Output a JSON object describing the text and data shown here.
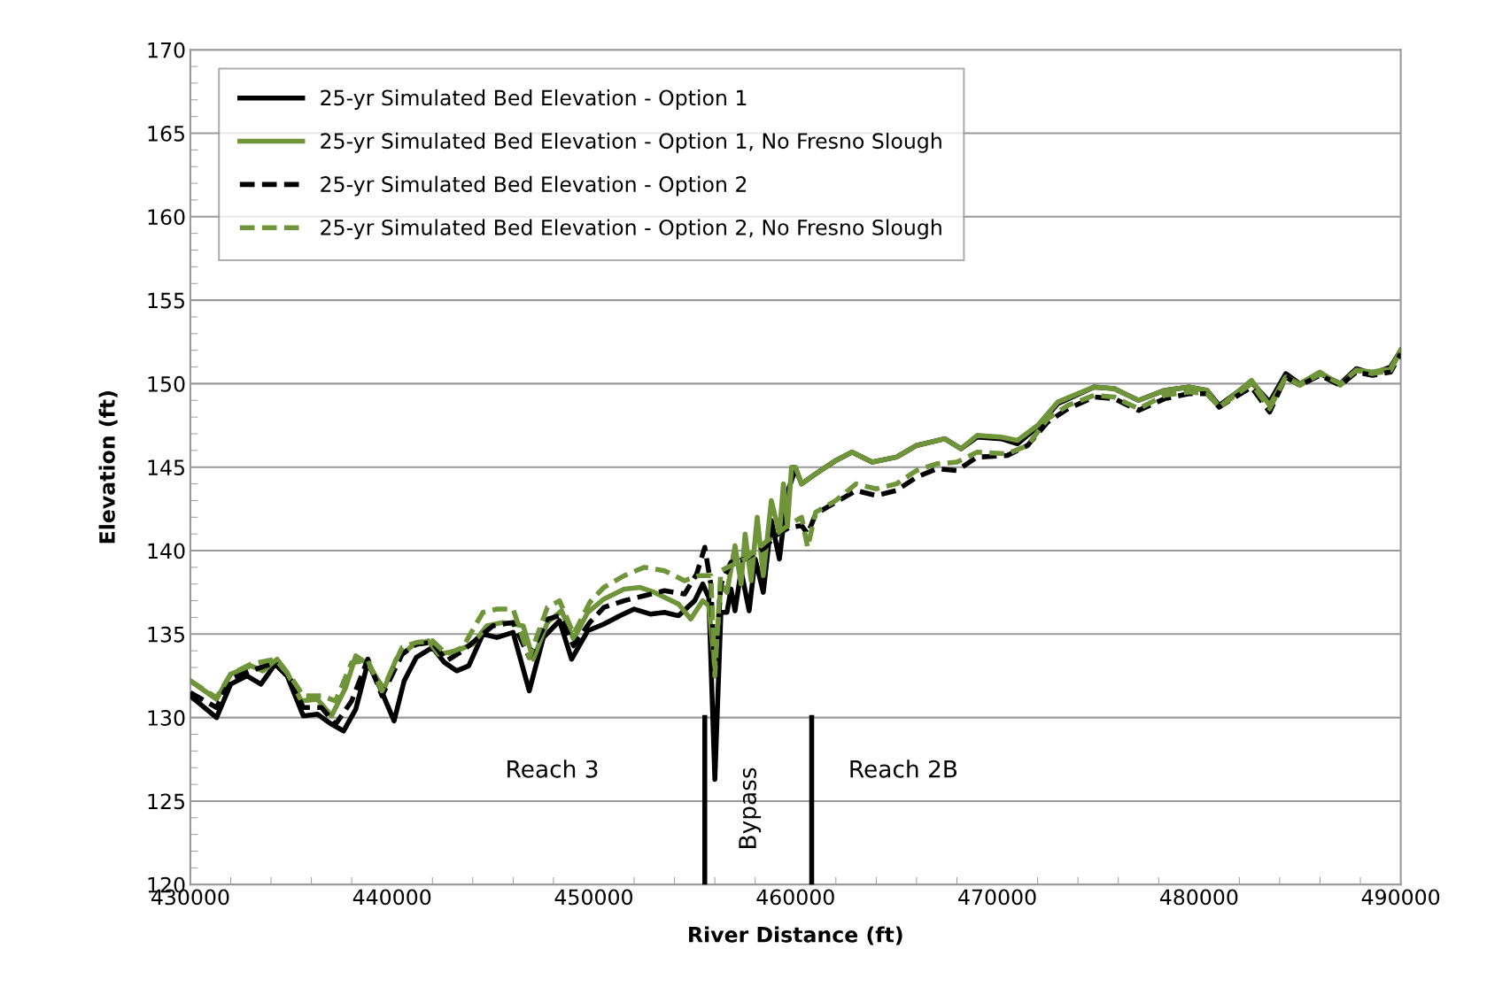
{
  "chart_data": {
    "type": "line",
    "xlabel": "River Distance (ft)",
    "ylabel": "Elevation (ft)",
    "xlim": [
      430000,
      490000
    ],
    "xticks": [
      430000,
      440000,
      450000,
      460000,
      470000,
      480000,
      490000
    ],
    "ylim": [
      120,
      170
    ],
    "yticks": [
      120,
      125,
      130,
      135,
      140,
      145,
      150,
      155,
      160,
      165,
      170
    ],
    "grid": "y",
    "legend": "top left",
    "series": [
      {
        "name": "25-yr Simulated Bed Elevation - Option 1",
        "color": "#000000",
        "line_style": "solid",
        "x": [
          430000,
          431300,
          432000,
          432800,
          433500,
          434200,
          434800,
          435600,
          436300,
          437000,
          437600,
          438200,
          438800,
          439400,
          440100,
          440600,
          441200,
          442000,
          442600,
          443200,
          443800,
          444500,
          445200,
          446000,
          446800,
          447500,
          448300,
          448900,
          449700,
          450500,
          451300,
          452000,
          452800,
          453500,
          454200,
          455000,
          455400,
          455700,
          456000,
          456300,
          456600,
          456800,
          457000,
          457300,
          457700,
          458000,
          458400,
          458800,
          459200,
          459600,
          460000,
          460300,
          461000,
          462000,
          462800,
          463800,
          465000,
          466000,
          467400,
          468200,
          469000,
          470200,
          471000,
          472000,
          473000,
          474800,
          475800,
          477000,
          478300,
          479500,
          480400,
          481000,
          482600,
          483500,
          484300,
          485000,
          486000,
          487000,
          487800,
          488600,
          489500,
          490000
        ],
        "values": [
          131.3,
          130.0,
          132.0,
          132.5,
          132.0,
          133.2,
          132.5,
          130.1,
          130.2,
          129.6,
          129.2,
          130.5,
          133.3,
          131.8,
          129.8,
          132.2,
          133.6,
          134.2,
          133.3,
          132.8,
          133.1,
          135.0,
          134.8,
          135.1,
          131.6,
          134.8,
          135.8,
          133.5,
          135.2,
          135.6,
          136.1,
          136.5,
          136.2,
          136.3,
          136.1,
          137.0,
          138.0,
          137.2,
          126.3,
          136.3,
          136.3,
          137.7,
          136.4,
          138.8,
          136.4,
          139.5,
          137.5,
          141.8,
          139.5,
          143.5,
          144.9,
          144.0,
          144.6,
          145.4,
          145.9,
          145.3,
          145.6,
          146.3,
          146.7,
          146.1,
          146.8,
          146.7,
          146.4,
          147.4,
          148.8,
          149.8,
          149.7,
          149.0,
          149.6,
          149.8,
          149.6,
          148.7,
          150.1,
          148.9,
          150.6,
          150.0,
          150.6,
          150.0,
          150.9,
          150.6,
          151.0,
          152.0
        ]
      },
      {
        "name": "25-yr Simulated Bed Elevation - Option 1, No Fresno Slough",
        "color": "#6f9439",
        "line_style": "solid",
        "x": [
          430000,
          431300,
          432000,
          433000,
          433600,
          434300,
          434800,
          435500,
          436300,
          437000,
          437700,
          438200,
          438800,
          439600,
          440200,
          441000,
          441800,
          442300,
          443200,
          444000,
          444700,
          445500,
          446500,
          447000,
          447700,
          448400,
          449000,
          449700,
          450500,
          451500,
          452300,
          453000,
          454200,
          454800,
          455400,
          455700,
          456000,
          456300,
          456600,
          457000,
          457300,
          457500,
          457800,
          458100,
          458400,
          458800,
          459200,
          459400,
          459600,
          459800,
          460000,
          460300,
          461000,
          462000,
          462800,
          463800,
          465000,
          466000,
          467400,
          468200,
          469000,
          470200,
          471000,
          472000,
          473000,
          474800,
          475800,
          477000,
          478300,
          479500,
          480400,
          481000,
          482600,
          483500,
          484300,
          485000,
          486000,
          487000,
          487800,
          488600,
          489500,
          490000
        ],
        "values": [
          132.2,
          131.1,
          132.6,
          133.1,
          132.8,
          133.5,
          132.7,
          131.0,
          131.1,
          130.1,
          131.8,
          133.7,
          133.2,
          131.7,
          133.5,
          134.3,
          134.6,
          133.8,
          134.0,
          134.4,
          135.5,
          135.7,
          135.5,
          133.5,
          135.7,
          136.4,
          134.7,
          136.3,
          137.1,
          137.7,
          137.8,
          137.5,
          136.8,
          135.9,
          137.0,
          136.7,
          133.0,
          138.0,
          137.5,
          140.3,
          138.0,
          141.0,
          138.2,
          142.0,
          138.5,
          143.0,
          141.0,
          144.0,
          141.5,
          145.0,
          145.0,
          144.0,
          144.6,
          145.4,
          145.9,
          145.3,
          145.6,
          146.3,
          146.7,
          146.1,
          146.9,
          146.8,
          146.6,
          147.5,
          148.9,
          149.8,
          149.7,
          149.0,
          149.6,
          149.8,
          149.6,
          148.6,
          150.2,
          148.7,
          150.4,
          150.0,
          150.7,
          149.9,
          150.8,
          150.7,
          150.9,
          152.0
        ]
      },
      {
        "name": "25-yr Simulated Bed Elevation - Option 2",
        "color": "#000000",
        "line_style": "dashed",
        "x": [
          430000,
          431300,
          432000,
          433000,
          434200,
          435000,
          435600,
          436500,
          437200,
          438000,
          438800,
          439500,
          440500,
          441200,
          442000,
          442700,
          443500,
          444200,
          445000,
          446000,
          446800,
          447700,
          448300,
          449000,
          449800,
          450500,
          451500,
          452500,
          453500,
          454500,
          455100,
          455500,
          455800,
          456000,
          456300,
          456800,
          457500,
          458500,
          459000,
          459700,
          460300,
          460600,
          461000,
          462000,
          463000,
          464000,
          465000,
          466000,
          467000,
          468000,
          469000,
          470500,
          471500,
          472500,
          473500,
          474800,
          475800,
          477000,
          478300,
          479500,
          480400,
          481000,
          482600,
          483500,
          484300,
          485000,
          486000,
          487000,
          487800,
          488600,
          489500,
          490000
        ],
        "values": [
          131.5,
          130.6,
          132.3,
          132.8,
          133.3,
          132.2,
          130.6,
          130.6,
          129.6,
          131.0,
          133.5,
          131.3,
          133.8,
          134.4,
          134.5,
          133.4,
          134.0,
          134.7,
          135.5,
          135.7,
          133.6,
          135.9,
          136.1,
          134.3,
          135.7,
          136.6,
          137.0,
          137.3,
          137.6,
          137.4,
          138.6,
          140.2,
          138.0,
          132.5,
          138.0,
          139.3,
          139.5,
          140.2,
          140.9,
          141.4,
          141.5,
          141.0,
          142.2,
          142.9,
          143.6,
          143.3,
          143.6,
          144.4,
          144.9,
          144.8,
          145.6,
          145.7,
          146.3,
          147.7,
          148.5,
          149.2,
          149.1,
          148.4,
          149.1,
          149.4,
          149.4,
          148.6,
          149.8,
          148.3,
          150.4,
          149.9,
          150.5,
          149.9,
          150.7,
          150.5,
          150.7,
          151.8
        ]
      },
      {
        "name": "25-yr Simulated Bed Elevation - Option 2, No Fresno Slough",
        "color": "#6f9439",
        "line_style": "dashed",
        "x": [
          430000,
          431300,
          432000,
          433000,
          434200,
          435000,
          435600,
          436500,
          437200,
          438000,
          438800,
          439500,
          440500,
          441200,
          442000,
          442700,
          443500,
          444500,
          445200,
          446000,
          446800,
          447700,
          448300,
          449000,
          449800,
          450500,
          451500,
          452500,
          453500,
          454500,
          455200,
          455800,
          456000,
          456300,
          457500,
          458500,
          459500,
          460300,
          460600,
          461000,
          462000,
          463000,
          464000,
          465000,
          466000,
          467000,
          468000,
          469000,
          470500,
          471500,
          472500,
          473500,
          474800,
          475800,
          477000,
          478300,
          479500,
          480400,
          481000,
          482600,
          483500,
          484300,
          485000,
          486000,
          487000,
          487800,
          488600,
          489500,
          490000
        ],
        "values": [
          132.2,
          131.2,
          132.6,
          133.2,
          133.5,
          132.4,
          131.3,
          131.3,
          131.0,
          133.3,
          133.4,
          131.6,
          134.2,
          134.5,
          134.6,
          133.8,
          134.2,
          136.3,
          136.5,
          136.5,
          133.6,
          136.6,
          137.0,
          135.0,
          136.9,
          137.8,
          138.5,
          139.0,
          138.8,
          138.2,
          138.5,
          138.5,
          132.5,
          138.8,
          139.5,
          140.5,
          141.4,
          142.0,
          140.2,
          142.3,
          143.0,
          144.0,
          143.7,
          144.0,
          144.8,
          145.2,
          145.3,
          145.9,
          145.8,
          146.3,
          147.9,
          148.7,
          149.3,
          149.2,
          148.5,
          149.3,
          149.5,
          149.4,
          148.6,
          150.0,
          148.5,
          150.4,
          149.9,
          150.6,
          150.0,
          150.8,
          150.6,
          150.8,
          152.0
        ]
      },
      {
        "color": "#000000",
        "line_style": "solid",
        "x": [
          455500,
          455500
        ],
        "values": [
          120,
          130
        ]
      },
      {
        "color": "#000000",
        "line_style": "solid",
        "x": [
          460800,
          460800
        ],
        "values": [
          120,
          130
        ]
      }
    ],
    "annotations": [
      "Reach 3",
      "Bypass",
      "Reach 2B"
    ]
  }
}
